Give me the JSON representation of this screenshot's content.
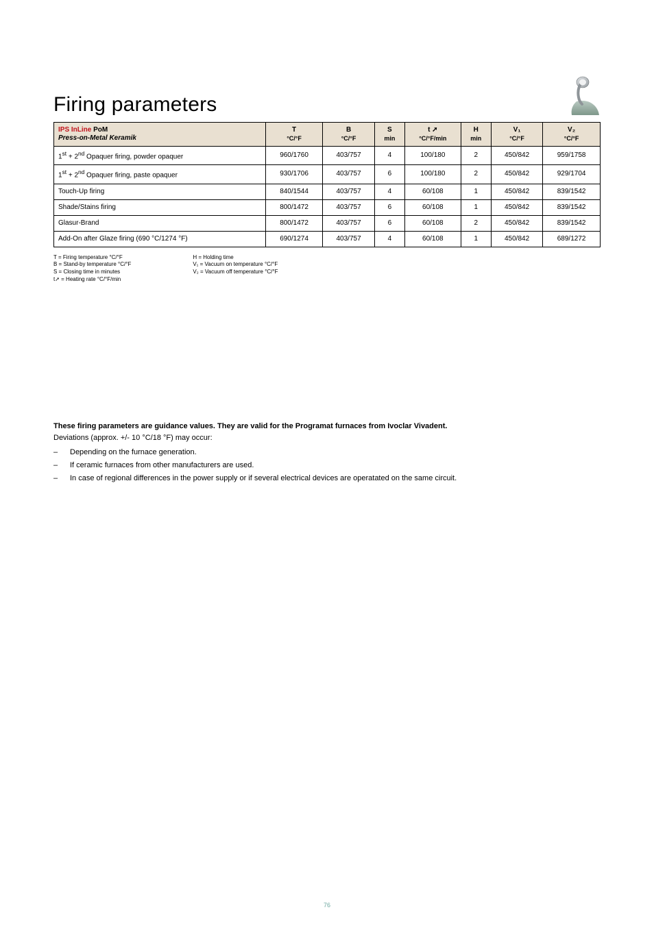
{
  "title": "Firing parameters",
  "table": {
    "header": {
      "col0_line1_ips": "IPS InLine",
      "col0_line1_pom": "PoM",
      "col0_line2": "Press-on-Metal Keramik",
      "T_label": "T",
      "T_unit": "°C/°F",
      "B_label": "B",
      "B_unit": "°C/°F",
      "S_label": "S",
      "S_unit": "min",
      "t_label": "t ➚",
      "t_unit": "°C/°F/min",
      "H_label": "H",
      "H_unit": "min",
      "V1_label": "V₁",
      "V1_unit": "°C/°F",
      "V2_label": "V₂",
      "V2_unit": "°C/°F"
    },
    "rows": [
      {
        "name_html": "1<sup>st</sup> + 2<sup>nd</sup> Opaquer firing, powder opaquer",
        "T": "960/1760",
        "B": "403/757",
        "S": "4",
        "t": "100/180",
        "H": "2",
        "V1": "450/842",
        "V2": "959/1758"
      },
      {
        "name_html": "1<sup>st</sup> + 2<sup>nd</sup> Opaquer firing, paste opaquer",
        "T": "930/1706",
        "B": "403/757",
        "S": "6",
        "t": "100/180",
        "H": "2",
        "V1": "450/842",
        "V2": "929/1704"
      },
      {
        "name_html": "Touch-Up firing",
        "T": "840/1544",
        "B": "403/757",
        "S": "4",
        "t": "60/108",
        "H": "1",
        "V1": "450/842",
        "V2": "839/1542"
      },
      {
        "name_html": "Shade/Stains firing",
        "T": "800/1472",
        "B": "403/757",
        "S": "6",
        "t": "60/108",
        "H": "1",
        "V1": "450/842",
        "V2": "839/1542"
      },
      {
        "name_html": "Glasur-Brand",
        "T": "800/1472",
        "B": "403/757",
        "S": "6",
        "t": "60/108",
        "H": "2",
        "V1": "450/842",
        "V2": "839/1542"
      },
      {
        "name_html": "Add-On after Glaze firing (690 °C/1274 °F)",
        "T": "690/1274",
        "B": "403/757",
        "S": "4",
        "t": "60/108",
        "H": "1",
        "V1": "450/842",
        "V2": "689/1272"
      }
    ],
    "colors": {
      "header_bg": "#e9e0d1",
      "ips_red": "#c1101a",
      "border": "#000000"
    },
    "font_sizes": {
      "body": 10,
      "header_sub": 9
    }
  },
  "legend": {
    "left": [
      "T = Firing temperature °C/°F",
      "B = Stand-by temperature °C/°F",
      "S = Closing time in minutes",
      "t➚ = Heating rate °C/°F/min"
    ],
    "right": [
      "H = Holding time",
      "V₁ = Vacuum on temperature °C/°F",
      "V₂ = Vacuum off temperature °C/°F"
    ]
  },
  "notes": {
    "lead": "These firing parameters are guidance values. They are valid for the Programat furnaces from Ivoclar Vivadent.",
    "sub": "Deviations (approx. +/- 10 °C/18 °F) may occur:",
    "items": [
      "Depending on the furnace generation.",
      "If ceramic furnaces from other manufacturers are used.",
      "In case of regional differences in the power supply or if several electrical devices are operatated on the same circuit."
    ]
  },
  "page_number": "76"
}
